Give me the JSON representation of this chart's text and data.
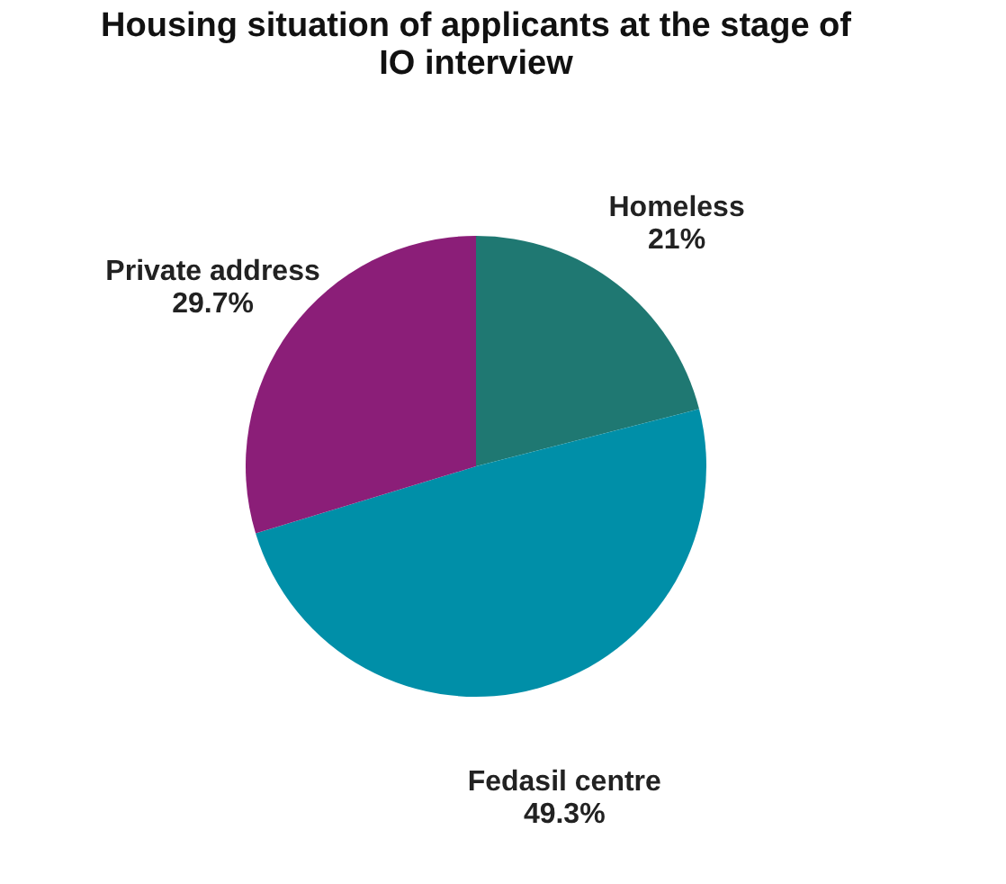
{
  "chart_data": {
    "type": "pie",
    "title": "Housing situation of applicants at the stage of IO interview",
    "categories": [
      "Homeless",
      "Fedasil centre",
      "Private address"
    ],
    "values": [
      21,
      49.3,
      29.7
    ],
    "colors": [
      "#1f7872",
      "#008fa8",
      "#8b1e78"
    ],
    "value_labels": [
      "21%",
      "49.3%",
      "29.7%"
    ],
    "legend": false
  }
}
